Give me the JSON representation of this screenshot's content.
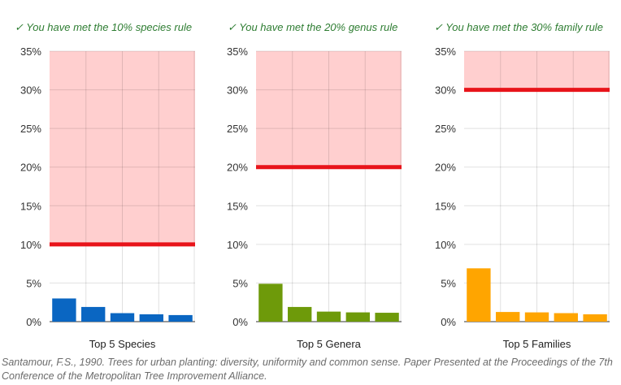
{
  "chart_data": [
    {
      "type": "bar",
      "title": "✓ You have met the 10% species rule",
      "xlabel": "Top 5 Species",
      "ylabel": "",
      "ylim": [
        0,
        35
      ],
      "yticks": [
        "0%",
        "5%",
        "10%",
        "15%",
        "20%",
        "25%",
        "30%",
        "35%"
      ],
      "threshold": 10,
      "values": [
        3.0,
        1.9,
        1.1,
        0.95,
        0.85
      ],
      "color": "#0a66c2",
      "threshold_color": "#e8141a",
      "zone_color": "#ffcfcf"
    },
    {
      "type": "bar",
      "title": "✓ You have met the 20% genus rule",
      "xlabel": "Top 5 Genera",
      "ylabel": "",
      "ylim": [
        0,
        35
      ],
      "yticks": [
        "0%",
        "5%",
        "10%",
        "15%",
        "20%",
        "25%",
        "30%",
        "35%"
      ],
      "threshold": 20,
      "values": [
        4.9,
        1.9,
        1.3,
        1.2,
        1.15
      ],
      "color": "#6e9a0a",
      "threshold_color": "#e8141a",
      "zone_color": "#ffcfcf"
    },
    {
      "type": "bar",
      "title": "✓ You have met the 30% family rule",
      "xlabel": "Top 5 Families",
      "ylabel": "",
      "ylim": [
        0,
        35
      ],
      "yticks": [
        "0%",
        "5%",
        "10%",
        "15%",
        "20%",
        "25%",
        "30%",
        "35%"
      ],
      "threshold": 30,
      "values": [
        6.9,
        1.25,
        1.2,
        1.1,
        0.95
      ],
      "color": "#ffa500",
      "threshold_color": "#e8141a",
      "zone_color": "#ffcfcf"
    }
  ],
  "citation": "Santamour, F.S., 1990. Trees for urban planting: diversity, uniformity and common sense. Paper Presented at the Proceedings of the 7th Conference of the Metropolitan Tree Improvement Alliance."
}
